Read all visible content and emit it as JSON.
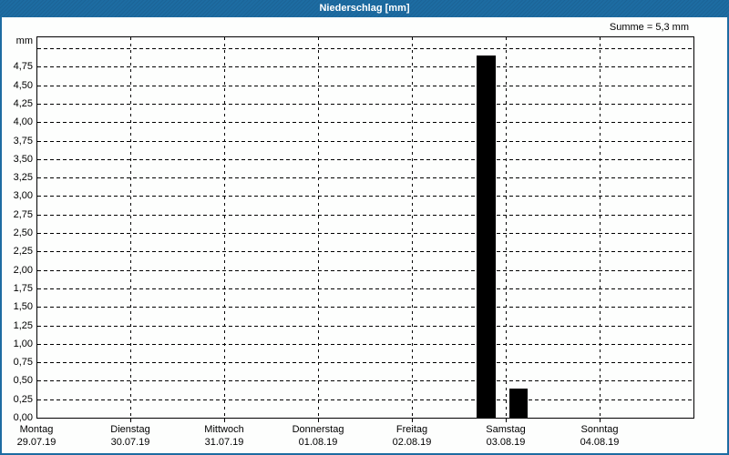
{
  "window": {
    "title": "Niederschlag [mm]"
  },
  "colors": {
    "accent": "#1d6ca2",
    "titlebar_text": "#ffffff",
    "content_bg": "#fdfefd",
    "axis": "#000000",
    "grid": "#000000",
    "bar": "#000000",
    "text": "#000000"
  },
  "chart_data": {
    "type": "bar",
    "title": "Niederschlag [mm]",
    "summary": "Summe = 5,3 mm",
    "total_mm": 5.3,
    "grid": "dashed-both",
    "y_axis": {
      "unit": "mm",
      "ylim": [
        0,
        5.16
      ],
      "tick_step": 0.25,
      "max_gridline": 5.0,
      "tick_labels": [
        "0,00",
        "0,25",
        "0,50",
        "0,75",
        "1,00",
        "1,25",
        "1,50",
        "1,75",
        "2,00",
        "2,25",
        "2,50",
        "2,75",
        "3,00",
        "3,25",
        "3,50",
        "3,75",
        "4,00",
        "4,25",
        "4,50",
        "4,75"
      ]
    },
    "x_axis": {
      "days": [
        {
          "name": "Montag",
          "date": "29.07.19"
        },
        {
          "name": "Dienstag",
          "date": "30.07.19"
        },
        {
          "name": "Mittwoch",
          "date": "31.07.19"
        },
        {
          "name": "Donnerstag",
          "date": "01.08.19"
        },
        {
          "name": "Freitag",
          "date": "02.08.19"
        },
        {
          "name": "Samstag",
          "date": "03.08.19"
        },
        {
          "name": "Sonntag",
          "date": "04.08.19"
        }
      ]
    },
    "bars": [
      {
        "value": 4.9,
        "x_frac": 0.6685,
        "w_frac": 0.0291
      },
      {
        "value": 0.4,
        "x_frac": 0.7185,
        "w_frac": 0.0278
      }
    ]
  }
}
